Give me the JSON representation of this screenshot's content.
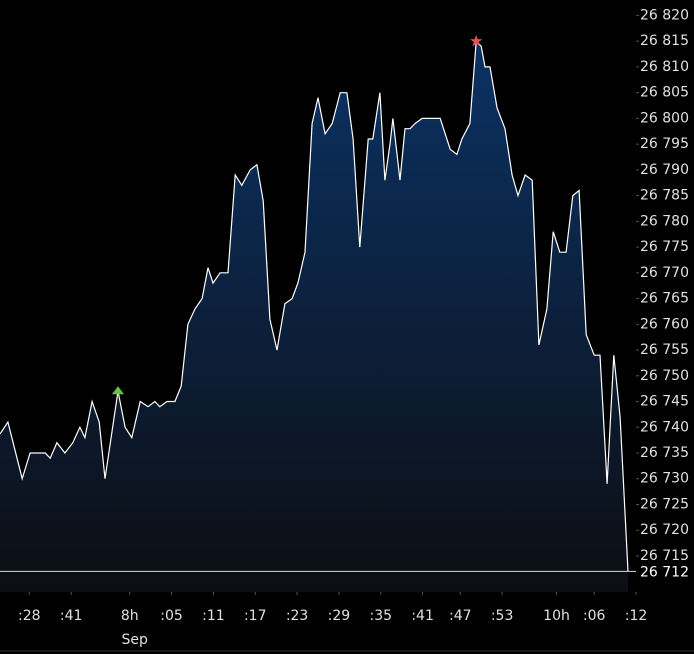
{
  "chart_data": {
    "type": "area",
    "x": [
      0,
      1.9,
      5.3,
      7.2,
      10.8,
      12,
      13.6,
      15.5,
      17.4,
      19.1,
      20.3,
      22,
      23.7,
      25.1,
      28.2,
      29.9,
      31.5,
      33.5,
      35.4,
      37,
      38.2,
      39.9,
      41.8,
      43.3,
      44.9,
      46.6,
      48.3,
      49.7,
      50.9,
      52.6,
      54.5,
      56.2,
      57.8,
      59.8,
      61.4,
      62.9,
      64.5,
      66.2,
      68.1,
      69.8,
      71.2,
      72.9,
      74.6,
      76,
      77.7,
      79.4,
      81.3,
      82.9,
      84.4,
      86,
      88,
      89.1,
      90.8,
      92,
      93.2,
      93.9,
      95.6,
      96.8,
      98,
      99.2,
      100.9,
      105.2,
      107.6,
      109.2,
      110.4,
      112.3,
      113.8,
      115,
      115.9,
      117.1,
      118.8,
      120.7,
      122.4,
      123.8,
      125.5,
      127.2,
      128.8,
      130.7,
      132.2,
      133.8,
      135.3,
      136.9,
      138.4,
      140.1,
      142,
      143.4,
      145.1,
      146.7,
      148.2,
      150.1
    ],
    "series": [
      {
        "color": "#ffffff",
        "values": [
          26738.7,
          26741,
          26730,
          26735,
          26735,
          26734,
          26737,
          26735,
          26737,
          26740,
          26738,
          26745,
          26741,
          26730,
          26747,
          26740,
          26738,
          26745,
          26744,
          26745,
          26744,
          26745,
          26745,
          26748,
          26760,
          26763,
          26765,
          26771,
          26768,
          26770,
          26770,
          26789,
          26787,
          26790,
          26791,
          26784,
          26761,
          26755,
          26764,
          26765,
          26768,
          26774,
          26799,
          26804,
          26797,
          26799,
          26805,
          26805,
          26796,
          26775,
          26796,
          26796,
          26805,
          26788,
          26795,
          26800,
          26788,
          26798,
          26798,
          26799,
          26800,
          26800,
          26794,
          26793,
          26796,
          26799,
          26815,
          26814,
          26810,
          26810,
          26802,
          26798,
          26789,
          26785,
          26789,
          26788,
          26756,
          26763,
          26778,
          26774,
          26774,
          26785,
          26786,
          26758,
          26754,
          26754,
          26729,
          26754,
          26742,
          26712
        ]
      }
    ],
    "markers": [
      {
        "x": 28.2,
        "value": 26747,
        "color": "#6cc04a",
        "shape": "triangle"
      },
      {
        "x": 113.8,
        "value": 26815,
        "color": "#e05050",
        "shape": "star"
      }
    ],
    "current_price": {
      "value": 26712,
      "label": "26 712"
    },
    "xlim": [
      0,
      152
    ],
    "xticks": [
      {
        "value": 7,
        "label": ":28"
      },
      {
        "value": 17,
        "label": ":41"
      },
      {
        "value": 31,
        "label": "8h"
      },
      {
        "value": 41,
        "label": ":05"
      },
      {
        "value": 51,
        "label": ":11"
      },
      {
        "value": 61,
        "label": ":17"
      },
      {
        "value": 71,
        "label": ":23"
      },
      {
        "value": 81,
        "label": ":29"
      },
      {
        "value": 91,
        "label": ":35"
      },
      {
        "value": 101,
        "label": ":41"
      },
      {
        "value": 110,
        "label": ":47"
      },
      {
        "value": 120,
        "label": ":53"
      },
      {
        "value": 133,
        "label": "10h"
      },
      {
        "value": 142,
        "label": ":06"
      },
      {
        "value": 152,
        "label": ":12"
      }
    ],
    "x_date_label": "Sep",
    "ylim": [
      26708,
      26823
    ],
    "yticks": [
      {
        "value": 26715,
        "label": "26 715"
      },
      {
        "value": 26720,
        "label": "26 720"
      },
      {
        "value": 26725,
        "label": "26 725"
      },
      {
        "value": 26730,
        "label": "26 730"
      },
      {
        "value": 26735,
        "label": "26 735"
      },
      {
        "value": 26740,
        "label": "26 740"
      },
      {
        "value": 26745,
        "label": "26 745"
      },
      {
        "value": 26750,
        "label": "26 750"
      },
      {
        "value": 26755,
        "label": "26 755"
      },
      {
        "value": 26760,
        "label": "26 760"
      },
      {
        "value": 26765,
        "label": "26 765"
      },
      {
        "value": 26770,
        "label": "26 770"
      },
      {
        "value": 26775,
        "label": "26 775"
      },
      {
        "value": 26780,
        "label": "26 780"
      },
      {
        "value": 26785,
        "label": "26 785"
      },
      {
        "value": 26790,
        "label": "26 790"
      },
      {
        "value": 26795,
        "label": "26 795"
      },
      {
        "value": 26800,
        "label": "26 800"
      },
      {
        "value": 26805,
        "label": "26 805"
      },
      {
        "value": 26810,
        "label": "26 810"
      },
      {
        "value": 26815,
        "label": "26 815"
      },
      {
        "value": 26820,
        "label": "26 820"
      }
    ]
  }
}
